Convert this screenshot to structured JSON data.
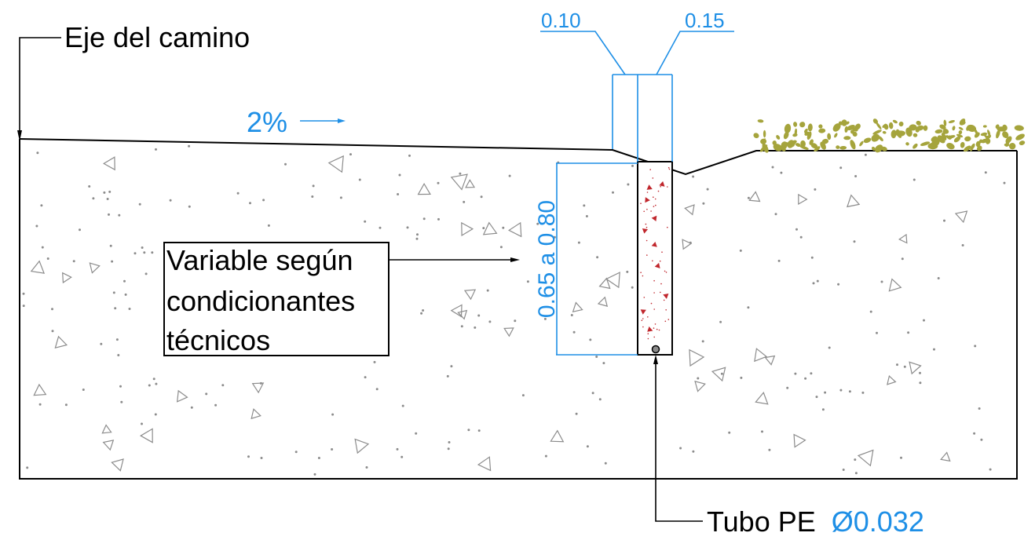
{
  "labels": {
    "road_axis": "Eje del camino",
    "slope": "2%",
    "dim_left_width": "0.10",
    "dim_right_width": "0.15",
    "depth_range": "0.65 a 0.80",
    "note_line1": "Variable según",
    "note_line2": "condicionantes",
    "note_line3": "técnicos",
    "pipe_label": "Tubo PE",
    "pipe_diameter": "Ø0.032"
  },
  "colors": {
    "linework": "#000000",
    "dimensions": "#1e8fe6",
    "soil_hatch": "#8c8c8c",
    "fill_hatch": "#c0272d",
    "vegetation": "#a5a43c"
  }
}
